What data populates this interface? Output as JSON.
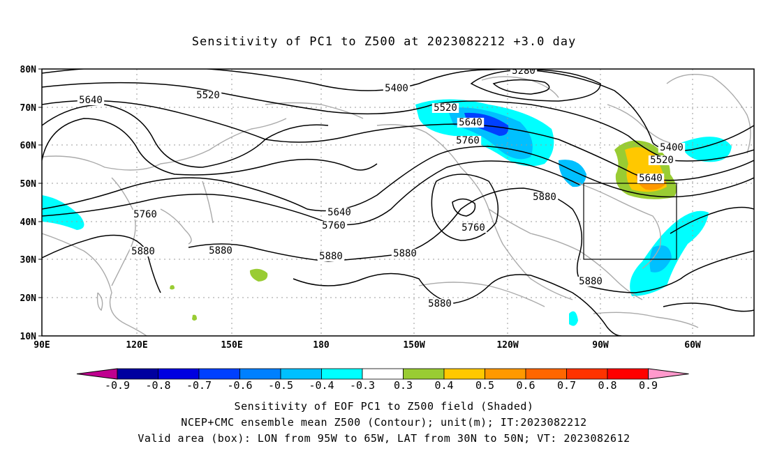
{
  "title": "Sensitivity of PC1 to Z500 at 2023082212 +3.0 day",
  "lat_labels": [
    "80N",
    "70N",
    "60N",
    "50N",
    "40N",
    "30N",
    "20N",
    "10N"
  ],
  "lon_labels": [
    "90E",
    "120E",
    "150E",
    "180",
    "150W",
    "120W",
    "90W",
    "60W"
  ],
  "contour_labels": [
    {
      "text": "5280"
    },
    {
      "text": "5400"
    },
    {
      "text": "5520"
    },
    {
      "text": "5640"
    },
    {
      "text": "5520"
    },
    {
      "text": "5640"
    },
    {
      "text": "5760"
    },
    {
      "text": "5400"
    },
    {
      "text": "5520"
    },
    {
      "text": "5640"
    },
    {
      "text": "5760"
    },
    {
      "text": "5640"
    },
    {
      "text": "5760"
    },
    {
      "text": "5760"
    },
    {
      "text": "5880"
    },
    {
      "text": "5880"
    },
    {
      "text": "5880"
    },
    {
      "text": "5880"
    },
    {
      "text": "5880"
    },
    {
      "text": "5880"
    },
    {
      "text": "5880"
    }
  ],
  "colorbar": {
    "labels": [
      "-0.9",
      "-0.8",
      "-0.7",
      "-0.6",
      "-0.5",
      "-0.4",
      "-0.3",
      "0.3",
      "0.4",
      "0.5",
      "0.6",
      "0.7",
      "0.8",
      "0.9"
    ],
    "colors": [
      "#bf008f",
      "#00009f",
      "#0000e0",
      "#0040ff",
      "#0080ff",
      "#00c0ff",
      "#00ffff",
      "#ffffff",
      "#99cc33",
      "#ffc800",
      "#ff9900",
      "#ff6600",
      "#ff3300",
      "#ff0000",
      "#ff99cc"
    ]
  },
  "captions": {
    "line1": "Sensitivity of EOF PC1 to Z500 field (Shaded)",
    "line2": "NCEP+CMC ensemble mean Z500 (Contour); unit(m); IT:2023082212",
    "line3": "Valid area (box): LON from 95W to 65W, LAT from 30N to 50N; VT: 2023082612"
  }
}
